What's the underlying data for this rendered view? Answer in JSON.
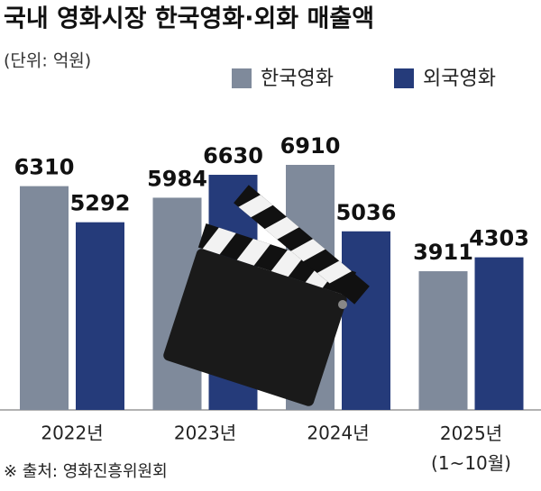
{
  "chart_data": {
    "type": "bar",
    "title": "국내 영화시장 한국영화·외화 매출액",
    "subtitle": "(단위: 억원)",
    "source": "※ 출처: 영화진흥위원회",
    "categories": [
      "2022년",
      "2023년",
      "2024년",
      "2025년\n(1~10월)"
    ],
    "series": [
      {
        "name": "한국영화",
        "color": "#7f8a9b",
        "values": [
          6310,
          5984,
          6910,
          3911
        ]
      },
      {
        "name": "외국영화",
        "color": "#253b7a",
        "values": [
          5292,
          6630,
          5036,
          4303
        ]
      }
    ]
  }
}
